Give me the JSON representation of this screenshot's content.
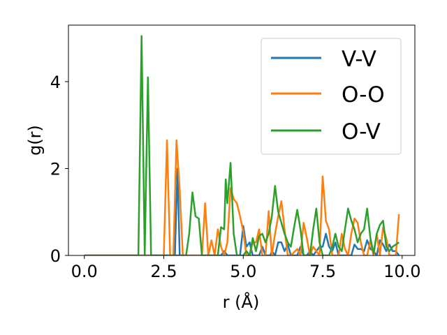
{
  "chart_data": {
    "type": "line",
    "title": "",
    "xlabel": "r (Å)",
    "ylabel": "g(r)",
    "xlim": [
      -0.5,
      10.4
    ],
    "ylim": [
      0,
      5.3
    ],
    "xticks": [
      0.0,
      2.5,
      5.0,
      7.5,
      10.0
    ],
    "xtick_labels": [
      "0.0",
      "2.5",
      "5.0",
      "7.5",
      "10.0"
    ],
    "yticks": [
      0,
      2,
      4
    ],
    "ytick_labels": [
      "0",
      "2",
      "4"
    ],
    "grid": false,
    "legend_position": "top-right",
    "series": [
      {
        "name": "V-V",
        "color": "#1f77b4",
        "points": [
          [
            0.0,
            0
          ],
          [
            2.7,
            0
          ],
          [
            2.85,
            0
          ],
          [
            2.93,
            2.0
          ],
          [
            3.0,
            0
          ],
          [
            4.0,
            0
          ],
          [
            4.3,
            0
          ],
          [
            4.4,
            0.1
          ],
          [
            4.5,
            0
          ],
          [
            4.9,
            0
          ],
          [
            5.0,
            0.68
          ],
          [
            5.1,
            0.2
          ],
          [
            5.2,
            0.3
          ],
          [
            5.3,
            0
          ],
          [
            5.5,
            0
          ],
          [
            5.6,
            0.2
          ],
          [
            5.7,
            0
          ],
          [
            5.85,
            0
          ],
          [
            5.9,
            0.1
          ],
          [
            6.0,
            0
          ],
          [
            6.1,
            0.3
          ],
          [
            6.2,
            0.3
          ],
          [
            6.3,
            0.1
          ],
          [
            6.4,
            0.25
          ],
          [
            6.5,
            0
          ],
          [
            6.7,
            0
          ],
          [
            6.8,
            0.2
          ],
          [
            6.9,
            0
          ],
          [
            7.0,
            0
          ],
          [
            7.1,
            0.1
          ],
          [
            7.2,
            0
          ],
          [
            7.4,
            0.2
          ],
          [
            7.5,
            0.2
          ],
          [
            7.6,
            0.5
          ],
          [
            7.7,
            0.2
          ],
          [
            7.8,
            0.1
          ],
          [
            7.9,
            0.3
          ],
          [
            8.0,
            0
          ],
          [
            8.3,
            0
          ],
          [
            8.4,
            0
          ],
          [
            8.5,
            0.25
          ],
          [
            8.6,
            0.15
          ],
          [
            8.7,
            0.15
          ],
          [
            8.8,
            0.1
          ],
          [
            8.9,
            0.35
          ],
          [
            9.0,
            0.15
          ],
          [
            9.1,
            0.1
          ],
          [
            9.2,
            0
          ],
          [
            9.3,
            0.35
          ],
          [
            9.4,
            0.25
          ],
          [
            9.5,
            0.1
          ],
          [
            9.6,
            0.25
          ],
          [
            9.7,
            0.1
          ],
          [
            9.8,
            0.1
          ],
          [
            9.9,
            0
          ]
        ]
      },
      {
        "name": "O-O",
        "color": "#ff7f0e",
        "points": [
          [
            0.0,
            0
          ],
          [
            2.4,
            0
          ],
          [
            2.5,
            0
          ],
          [
            2.6,
            2.65
          ],
          [
            2.7,
            0
          ],
          [
            2.8,
            0
          ],
          [
            2.9,
            2.65
          ],
          [
            3.0,
            1.5
          ],
          [
            3.1,
            0
          ],
          [
            3.7,
            0
          ],
          [
            3.8,
            1.2
          ],
          [
            3.9,
            0
          ],
          [
            4.0,
            0.35
          ],
          [
            4.1,
            0
          ],
          [
            4.2,
            0.6
          ],
          [
            4.3,
            0.2
          ],
          [
            4.4,
            0
          ],
          [
            4.5,
            0.3
          ],
          [
            4.6,
            1.55
          ],
          [
            4.7,
            1.3
          ],
          [
            4.8,
            1.2
          ],
          [
            4.9,
            0.9
          ],
          [
            5.0,
            0.55
          ],
          [
            5.1,
            0
          ],
          [
            5.2,
            0
          ],
          [
            5.3,
            0.3
          ],
          [
            5.4,
            0.3
          ],
          [
            5.5,
            0.6
          ],
          [
            5.6,
            0
          ],
          [
            5.7,
            0
          ],
          [
            5.8,
            1.02
          ],
          [
            5.9,
            0
          ],
          [
            6.0,
            0.5
          ],
          [
            6.1,
            0.9
          ],
          [
            6.2,
            1.25
          ],
          [
            6.3,
            0.6
          ],
          [
            6.4,
            0
          ],
          [
            6.5,
            0
          ],
          [
            6.7,
            0.15
          ],
          [
            6.8,
            0
          ],
          [
            6.9,
            0.75
          ],
          [
            7.0,
            0.4
          ],
          [
            7.1,
            0
          ],
          [
            7.2,
            0.2
          ],
          [
            7.3,
            0.1
          ],
          [
            7.4,
            0
          ],
          [
            7.5,
            1.82
          ],
          [
            7.6,
            0.8
          ],
          [
            7.7,
            0.6
          ],
          [
            7.8,
            0
          ],
          [
            8.0,
            0
          ],
          [
            8.1,
            0.5
          ],
          [
            8.2,
            0.15
          ],
          [
            8.3,
            0
          ],
          [
            8.4,
            0.5
          ],
          [
            8.5,
            0.85
          ],
          [
            8.6,
            0.75
          ],
          [
            8.7,
            0.3
          ],
          [
            8.8,
            0
          ],
          [
            8.9,
            0
          ],
          [
            9.0,
            0.35
          ],
          [
            9.1,
            0
          ],
          [
            9.2,
            0.5
          ],
          [
            9.3,
            0
          ],
          [
            9.4,
            0.65
          ],
          [
            9.5,
            0.4
          ],
          [
            9.6,
            0
          ],
          [
            9.7,
            0
          ],
          [
            9.8,
            0
          ],
          [
            9.9,
            0.95
          ]
        ]
      },
      {
        "name": "O-V",
        "color": "#2ca02c",
        "points": [
          [
            0.0,
            0
          ],
          [
            1.7,
            0
          ],
          [
            1.8,
            5.05
          ],
          [
            1.9,
            0
          ],
          [
            2.0,
            4.1
          ],
          [
            2.1,
            0
          ],
          [
            3.2,
            0
          ],
          [
            3.3,
            0.5
          ],
          [
            3.4,
            1.45
          ],
          [
            3.5,
            0.9
          ],
          [
            3.6,
            0.85
          ],
          [
            3.7,
            0
          ],
          [
            4.2,
            0
          ],
          [
            4.3,
            0.65
          ],
          [
            4.4,
            0.6
          ],
          [
            4.45,
            1.75
          ],
          [
            4.5,
            1.2
          ],
          [
            4.6,
            2.13
          ],
          [
            4.7,
            0.5
          ],
          [
            4.8,
            0
          ],
          [
            5.0,
            0
          ],
          [
            5.1,
            0.1
          ],
          [
            5.2,
            0
          ],
          [
            5.3,
            0.4
          ],
          [
            5.4,
            0.1
          ],
          [
            5.5,
            0.45
          ],
          [
            5.6,
            0.5
          ],
          [
            5.7,
            0.3
          ],
          [
            5.8,
            0.5
          ],
          [
            5.9,
            0.9
          ],
          [
            6.0,
            1.6
          ],
          [
            6.1,
            1.0
          ],
          [
            6.2,
            0.75
          ],
          [
            6.3,
            0.5
          ],
          [
            6.4,
            0.3
          ],
          [
            6.5,
            0.2
          ],
          [
            6.6,
            0.65
          ],
          [
            6.7,
            1.05
          ],
          [
            6.8,
            0.6
          ],
          [
            6.9,
            0
          ],
          [
            7.1,
            0
          ],
          [
            7.2,
            0.6
          ],
          [
            7.3,
            1.08
          ],
          [
            7.4,
            0.3
          ],
          [
            7.5,
            0
          ],
          [
            7.7,
            0
          ],
          [
            7.8,
            0.2
          ],
          [
            7.9,
            0.5
          ],
          [
            8.0,
            0.2
          ],
          [
            8.1,
            0.1
          ],
          [
            8.2,
            0.6
          ],
          [
            8.3,
            1.08
          ],
          [
            8.4,
            0.8
          ],
          [
            8.5,
            0.6
          ],
          [
            8.6,
            0.3
          ],
          [
            8.7,
            0.5
          ],
          [
            8.8,
            0.6
          ],
          [
            8.9,
            1.08
          ],
          [
            9.0,
            0.4
          ],
          [
            9.1,
            0.05
          ],
          [
            9.2,
            0.5
          ],
          [
            9.3,
            0.7
          ],
          [
            9.4,
            0.8
          ],
          [
            9.5,
            0.2
          ],
          [
            9.6,
            0.1
          ],
          [
            9.7,
            0.2
          ],
          [
            9.8,
            0.25
          ],
          [
            9.9,
            0.3
          ]
        ]
      }
    ]
  }
}
